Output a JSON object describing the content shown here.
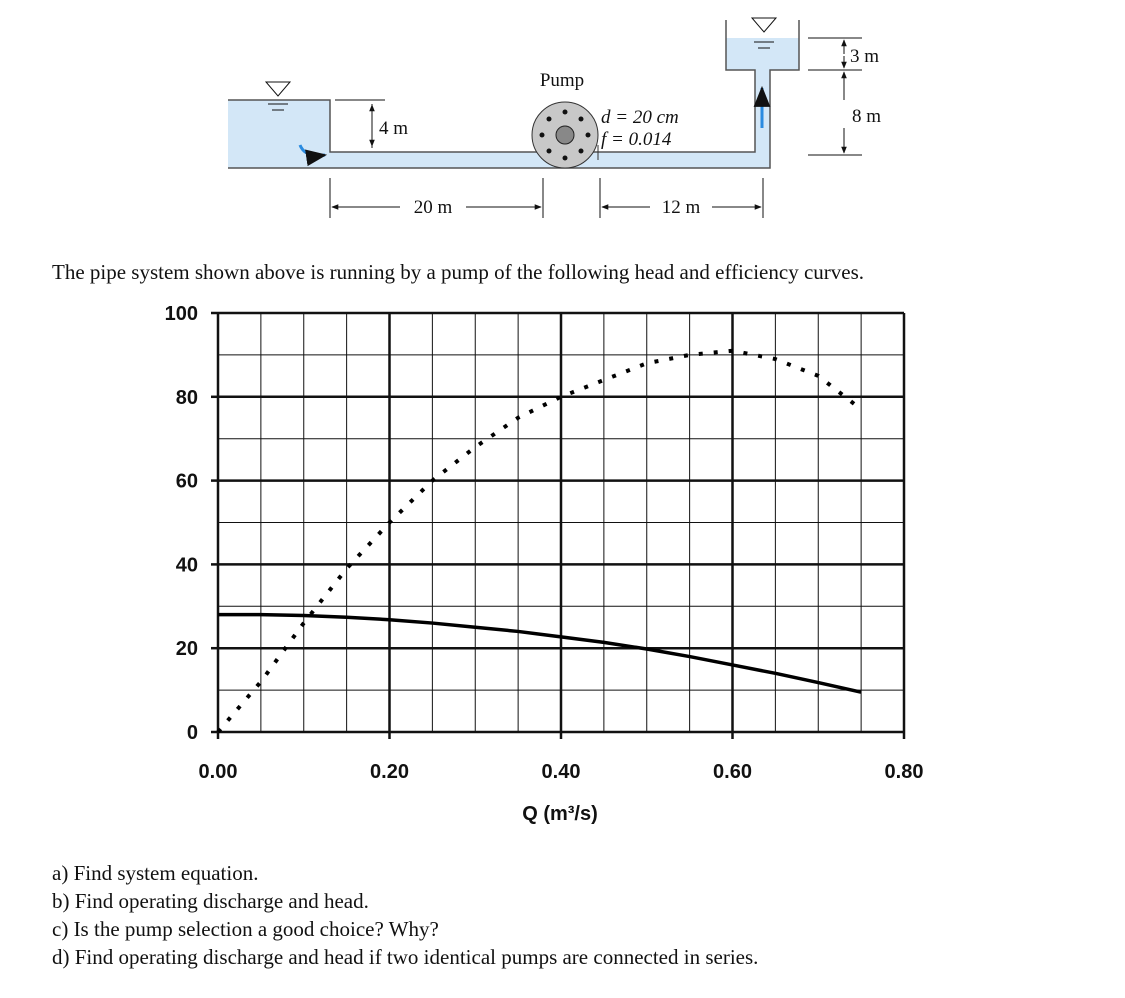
{
  "diagram": {
    "pump_label": "Pump",
    "depth_left": "4 m",
    "pipe_diameter": "d = 20 cm",
    "friction_factor": "f = 0.014",
    "length_left": "20 m",
    "length_right": "12 m",
    "depth_right": "3 m",
    "elevation": "8 m"
  },
  "intro": "The pipe system shown above is running by a pump of the following head and efficiency curves.",
  "chart_data": {
    "type": "line",
    "xlabel": "Q (m³/s)",
    "x": [
      0,
      0.05,
      0.1,
      0.15,
      0.2,
      0.25,
      0.3,
      0.35,
      0.4,
      0.45,
      0.5,
      0.55,
      0.6,
      0.65,
      0.7,
      0.75
    ],
    "series": [
      {
        "color": "#000000",
        "dashed": false,
        "values": [
          28,
          28,
          27.8,
          27.4,
          26.8,
          26,
          25,
          24,
          22.7,
          21.4,
          19.8,
          18,
          16,
          14,
          11.8,
          9.5
        ]
      },
      {
        "color": "#000000",
        "dashed": true,
        "values": [
          0,
          12,
          26,
          39,
          50,
          60,
          68,
          75,
          80,
          84,
          88,
          90,
          91,
          89,
          85,
          77
        ]
      }
    ],
    "xlim": [
      0,
      0.8
    ],
    "xticks": [
      {
        "value": 0,
        "label": "0.00"
      },
      {
        "value": 0.2,
        "label": "0.20"
      },
      {
        "value": 0.4,
        "label": "0.40"
      },
      {
        "value": 0.6,
        "label": "0.60"
      },
      {
        "value": 0.8,
        "label": "0.80"
      }
    ],
    "ylim": [
      0,
      100
    ],
    "yticks": [
      0,
      20,
      40,
      60,
      80,
      100
    ],
    "grid": true
  },
  "questions": [
    "a) Find system equation.",
    "b) Find operating discharge and head.",
    "c) Is the pump selection a good choice? Why?",
    "d) Find operating discharge and head if two identical pumps are connected in series."
  ]
}
